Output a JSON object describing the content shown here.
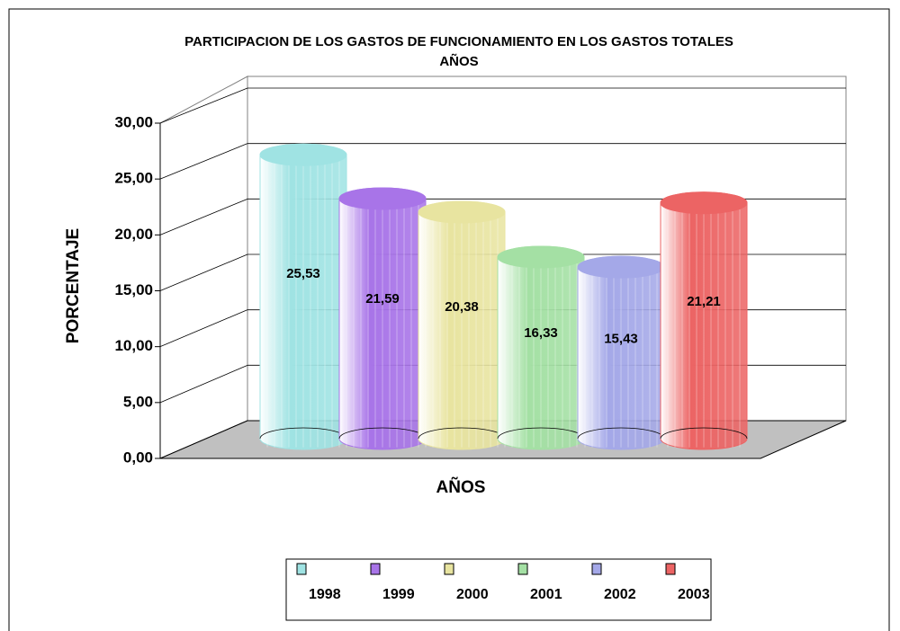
{
  "chart_data": {
    "type": "cylinder",
    "title": "PARTICIPACION DE LOS GASTOS DE FUNCIONAMIENTO EN LOS GASTOS TOTALES",
    "subtitle": "AÑOS",
    "y_label": "PORCENTAJE",
    "x_label": "AÑOS",
    "ylim": [
      0,
      30
    ],
    "yticks": [
      {
        "value": 0,
        "label": "0,00"
      },
      {
        "value": 5,
        "label": "5,00"
      },
      {
        "value": 10,
        "label": "10,00"
      },
      {
        "value": 15,
        "label": "15,00"
      },
      {
        "value": 20,
        "label": "20,00"
      },
      {
        "value": 25,
        "label": "25,00"
      },
      {
        "value": 30,
        "label": "30,00"
      }
    ],
    "grid": true,
    "legend": "bottom",
    "series": [
      {
        "name": "1998",
        "color": "#9fe3e3",
        "values": [
          25.53
        ],
        "value_labels": [
          "25,53"
        ]
      },
      {
        "name": "1999",
        "color": "#a874e8",
        "values": [
          21.59
        ],
        "value_labels": [
          "21,59"
        ]
      },
      {
        "name": "2000",
        "color": "#e8e4a0",
        "values": [
          20.38
        ],
        "value_labels": [
          "20,38"
        ]
      },
      {
        "name": "2001",
        "color": "#a4e0a4",
        "values": [
          16.33
        ],
        "value_labels": [
          "16,33"
        ]
      },
      {
        "name": "2002",
        "color": "#a4a8e8",
        "values": [
          15.43
        ],
        "value_labels": [
          "15,43"
        ]
      },
      {
        "name": "2003",
        "color": "#ec6464",
        "values": [
          21.21
        ],
        "value_labels": [
          "21,21"
        ]
      }
    ]
  }
}
